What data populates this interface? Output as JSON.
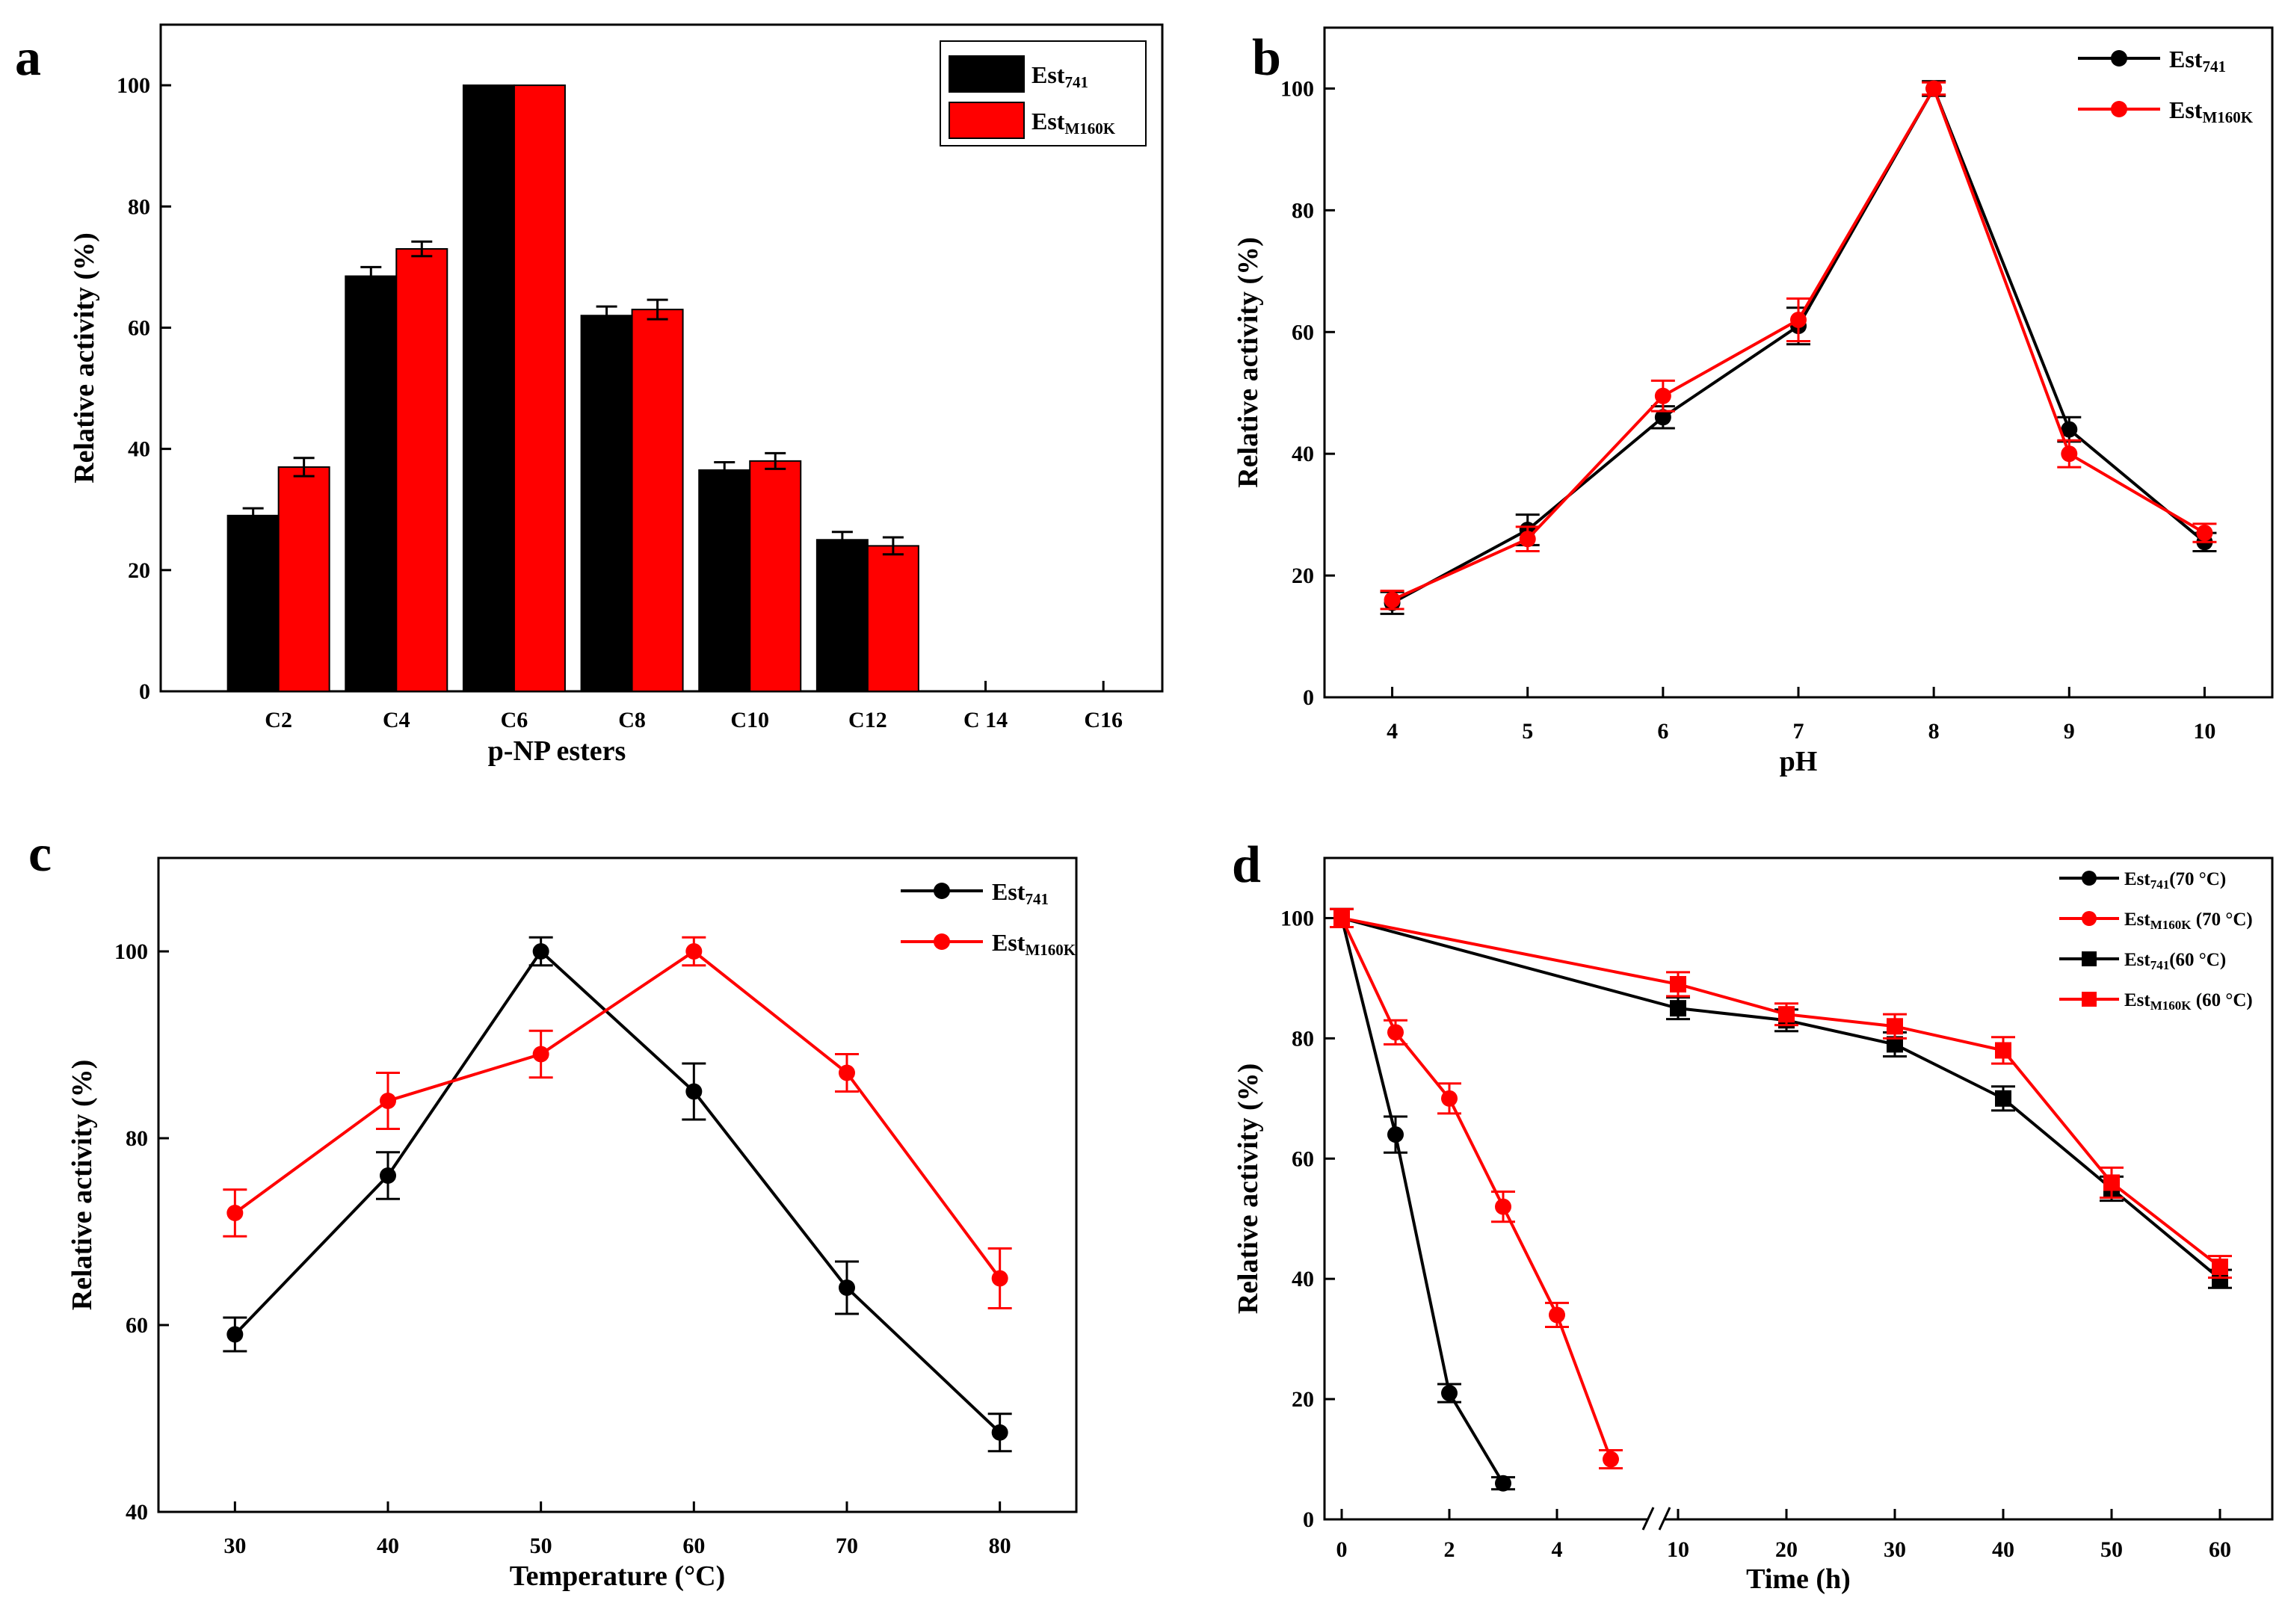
{
  "colors": {
    "black_series": "#000000",
    "red_series": "#ff0000",
    "axis": "#000000"
  },
  "chart_data": [
    {
      "panel": "a",
      "type": "bar",
      "xlabel": "p-NP esters",
      "ylabel": "Relative activity (%)",
      "ylim": [
        0,
        110
      ],
      "yticks": [
        0,
        20,
        40,
        60,
        80,
        100
      ],
      "categories": [
        "C2",
        "C4",
        "C6",
        "C8",
        "C10",
        "C12",
        "C 14",
        "C16"
      ],
      "legend_position": "top-right",
      "series": [
        {
          "name": "Est",
          "sub": "741",
          "color": "#000000",
          "values": [
            29,
            68.5,
            100,
            62,
            36.5,
            25,
            null,
            null
          ],
          "errors": [
            1.2,
            1.5,
            0,
            1.5,
            1.3,
            1.3,
            null,
            null
          ]
        },
        {
          "name": "Est",
          "sub": "M160K",
          "color": "#ff0000",
          "values": [
            37,
            73,
            100,
            63,
            38,
            24,
            null,
            null
          ],
          "errors": [
            1.5,
            1.2,
            0,
            1.6,
            1.3,
            1.4,
            null,
            null
          ]
        }
      ]
    },
    {
      "panel": "b",
      "type": "line",
      "xlabel": "pH",
      "ylabel": "Relative activity (%)",
      "xlim": [
        3.5,
        10.5
      ],
      "ylim": [
        0,
        110
      ],
      "xticks": [
        4,
        5,
        6,
        7,
        8,
        9,
        10
      ],
      "yticks": [
        0,
        20,
        40,
        60,
        80,
        100
      ],
      "legend_position": "top-right",
      "series": [
        {
          "name": "Est",
          "sub": "741",
          "color": "#000000",
          "marker": "circle",
          "x": [
            4,
            5,
            6,
            7,
            8,
            9,
            10
          ],
          "y": [
            15.5,
            27.5,
            46,
            61,
            100,
            44,
            25.5
          ],
          "err": [
            1.8,
            2.5,
            1.8,
            3,
            1.2,
            2,
            1.5
          ]
        },
        {
          "name": "Est",
          "sub": "M160K",
          "color": "#ff0000",
          "marker": "circle",
          "x": [
            4,
            5,
            6,
            7,
            8,
            9,
            10
          ],
          "y": [
            16,
            26,
            49.5,
            62,
            100,
            40,
            27
          ],
          "err": [
            1.5,
            2,
            2.5,
            3.5,
            1,
            2.2,
            1.5
          ]
        }
      ]
    },
    {
      "panel": "c",
      "type": "line",
      "xlabel": "Temperature (°C)",
      "ylabel": "Relative activity (%)",
      "xlim": [
        25,
        85
      ],
      "ylim": [
        40,
        110
      ],
      "xticks": [
        30,
        40,
        50,
        60,
        70,
        80
      ],
      "yticks": [
        40,
        60,
        80,
        100
      ],
      "legend_position": "top-right",
      "series": [
        {
          "name": "Est",
          "sub": "741",
          "color": "#000000",
          "marker": "circle",
          "x": [
            30,
            40,
            50,
            60,
            70,
            80
          ],
          "y": [
            59,
            76,
            100,
            85,
            64,
            48.5
          ],
          "err": [
            1.8,
            2.5,
            1.5,
            3,
            2.8,
            2
          ]
        },
        {
          "name": "Est",
          "sub": "M160K",
          "color": "#ff0000",
          "marker": "circle",
          "x": [
            30,
            40,
            50,
            60,
            70,
            80
          ],
          "y": [
            72,
            84,
            89,
            100,
            87,
            65
          ],
          "err": [
            2.5,
            3,
            2.5,
            1.5,
            2,
            3.2
          ]
        }
      ]
    },
    {
      "panel": "d",
      "type": "line",
      "xlabel": "Time (h)",
      "ylabel": "Relative activity (%)",
      "ylim": [
        0,
        110
      ],
      "yticks": [
        0,
        20,
        40,
        60,
        80,
        100
      ],
      "axis_break": "between 5 and 10",
      "xticks": [
        0,
        2,
        4,
        10,
        20,
        30,
        40,
        50,
        60
      ],
      "legend_position": "top-right",
      "series": [
        {
          "name": "Est",
          "sub": "741",
          "cond": "(70 °C)",
          "color": "#000000",
          "marker": "circle",
          "x": [
            0,
            1,
            2,
            3
          ],
          "y": [
            100,
            64,
            21,
            6
          ],
          "err": [
            1.5,
            3,
            1.5,
            1
          ]
        },
        {
          "name": "Est",
          "sub": "M160K",
          "cond": " (70 °C)",
          "color": "#ff0000",
          "marker": "circle",
          "x": [
            0,
            1,
            2,
            3,
            4,
            5
          ],
          "y": [
            100,
            81,
            70,
            52,
            34,
            10
          ],
          "err": [
            1.5,
            2,
            2.5,
            2.5,
            2,
            1.5
          ]
        },
        {
          "name": "Est",
          "sub": "741",
          "cond": "(60 °C)",
          "color": "#000000",
          "marker": "square",
          "x": [
            0,
            10,
            20,
            30,
            40,
            50,
            60
          ],
          "y": [
            100,
            85,
            83,
            79,
            70,
            55,
            40
          ],
          "err": [
            1.5,
            1.8,
            1.8,
            2,
            2,
            2,
            1.5
          ]
        },
        {
          "name": "Est",
          "sub": "M160K",
          "cond": " (60 °C)",
          "color": "#ff0000",
          "marker": "square",
          "x": [
            0,
            10,
            20,
            30,
            40,
            50,
            60
          ],
          "y": [
            100,
            89,
            84,
            82,
            78,
            56,
            42
          ],
          "err": [
            1.5,
            2,
            1.8,
            2,
            2.2,
            2.5,
            1.8
          ]
        }
      ]
    }
  ]
}
